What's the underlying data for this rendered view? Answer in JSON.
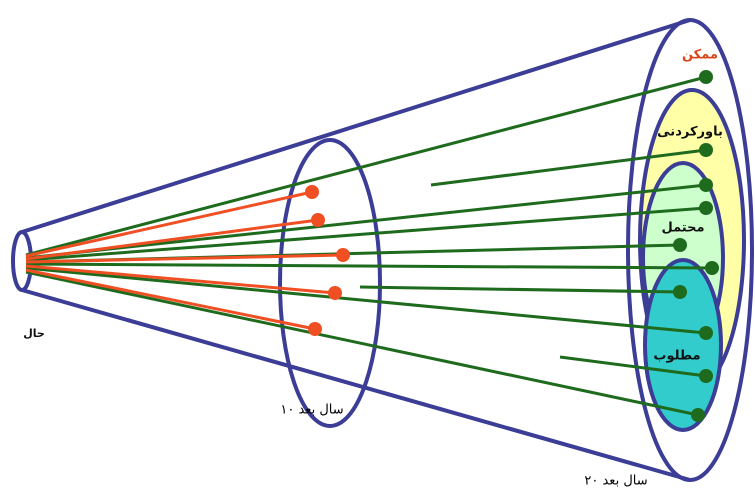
{
  "labels": {
    "possible": "ممکن",
    "plausible": "باورکردنی",
    "probable": "محتمل",
    "preferable": "مطلوب",
    "present": "حال",
    "ten_years": "۱۰ سال بعد",
    "twenty_years": "۲۰ سال بعد"
  }
}
